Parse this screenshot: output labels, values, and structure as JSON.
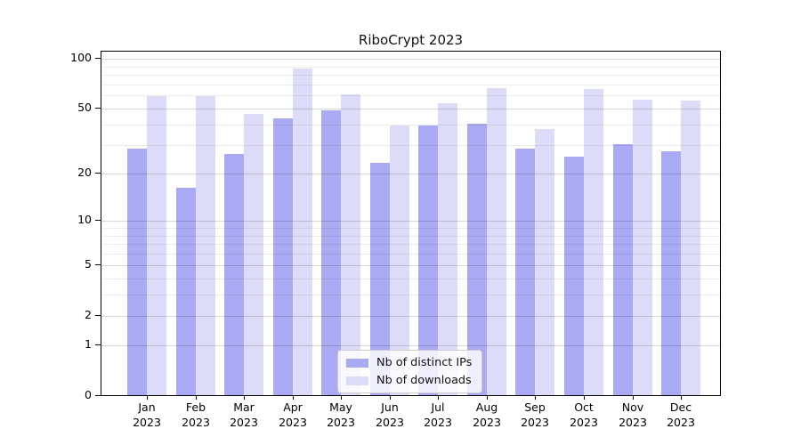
{
  "chart_data": {
    "type": "bar",
    "title": "RiboCrypt 2023",
    "categories": [
      "Jan",
      "Feb",
      "Mar",
      "Apr",
      "May",
      "Jun",
      "Jul",
      "Aug",
      "Sep",
      "Oct",
      "Nov",
      "Dec"
    ],
    "x_tick_year": "2023",
    "series": [
      {
        "name": "Nb of distinct IPs",
        "color": "#a9a9f4",
        "values": [
          28,
          16,
          26,
          43,
          48,
          23,
          39,
          40,
          28,
          25,
          30,
          27
        ]
      },
      {
        "name": "Nb of downloads",
        "color": "#dcdcf9",
        "values": [
          59,
          59,
          46,
          86,
          60,
          39,
          53,
          66,
          37,
          65,
          56,
          55
        ]
      }
    ],
    "y_axis": {
      "scale": "log10(1+x)",
      "major_ticks": [
        0,
        1,
        2,
        5,
        10,
        20,
        50,
        100
      ],
      "minor_ticks": [
        3,
        4,
        6,
        7,
        8,
        9,
        30,
        40,
        60,
        70,
        80,
        90
      ],
      "range": [
        0,
        110
      ]
    },
    "legend_position": "lower center",
    "grid": true
  }
}
